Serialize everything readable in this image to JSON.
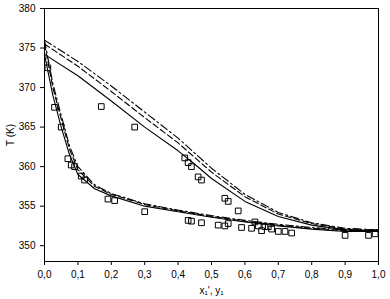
{
  "chart_data": {
    "type": "line",
    "xlabel": "x₁', y₁",
    "ylabel": "T (K)",
    "xlim": [
      0,
      1
    ],
    "ylim": [
      348,
      380
    ],
    "xticks": [
      {
        "value": 0,
        "label": "0,0"
      },
      {
        "value": 0.1,
        "label": "0,1"
      },
      {
        "value": 0.2,
        "label": "0,2"
      },
      {
        "value": 0.3,
        "label": "0,3"
      },
      {
        "value": 0.4,
        "label": "0,4"
      },
      {
        "value": 0.5,
        "label": "0,5"
      },
      {
        "value": 0.6,
        "label": "0,6"
      },
      {
        "value": 0.7,
        "label": "0,7"
      },
      {
        "value": 0.8,
        "label": "0,8"
      },
      {
        "value": 0.9,
        "label": "0,9"
      },
      {
        "value": 1,
        "label": "1,0"
      }
    ],
    "yticks": [
      350,
      355,
      360,
      365,
      370,
      375,
      380
    ],
    "grid": false,
    "series": [
      {
        "type": "scatter",
        "marker": "square",
        "color": "#000000",
        "x": [
          0.01,
          0.03,
          0.05,
          0.07,
          0.08,
          0.09,
          0.11,
          0.12,
          0.19,
          0.21,
          0.3,
          0.43,
          0.44,
          0.47,
          0.52,
          0.54,
          0.55,
          0.59,
          0.62,
          0.64,
          0.65,
          0.66,
          0.68,
          0.7,
          0.72,
          0.74,
          0.9,
          0.97,
          0.99,
          0.17,
          0.27,
          0.42,
          0.43,
          0.44,
          0.46,
          0.47,
          0.54,
          0.55,
          0.58,
          0.63,
          0.67
        ],
        "values": [
          372.5,
          367.5,
          365.0,
          361.0,
          360.2,
          360.0,
          358.8,
          358.3,
          355.9,
          355.7,
          354.3,
          353.2,
          353.1,
          352.9,
          352.6,
          352.5,
          352.8,
          352.3,
          352.2,
          352.5,
          351.9,
          352.4,
          352.1,
          351.8,
          351.8,
          351.6,
          351.3,
          351.3,
          351.5,
          367.6,
          365.0,
          361.1,
          360.5,
          360.0,
          358.7,
          358.3,
          356.0,
          355.6,
          354.4,
          353.0,
          352.4
        ]
      },
      {
        "type": "line",
        "line_style": "solid",
        "color": "#000000",
        "x": [
          0,
          0.025,
          0.05,
          0.075,
          0.1,
          0.15,
          0.2,
          0.3,
          0.4,
          0.5,
          0.6,
          0.7,
          0.8,
          0.9,
          1.0
        ],
        "values": [
          374.2,
          369.0,
          365.0,
          361.5,
          359.0,
          357.2,
          356.3,
          355.0,
          354.3,
          353.6,
          353.0,
          352.5,
          352.1,
          351.8,
          351.8
        ]
      },
      {
        "type": "line",
        "line_style": "solid",
        "color": "#000000",
        "x": [
          0,
          0.1,
          0.2,
          0.3,
          0.4,
          0.45,
          0.5,
          0.6,
          0.7,
          0.8,
          0.9,
          1.0
        ],
        "values": [
          374.2,
          371.5,
          368.3,
          365.0,
          362.0,
          360.3,
          358.5,
          355.6,
          353.7,
          352.6,
          352.0,
          351.8
        ]
      },
      {
        "type": "line",
        "line_style": "dashed",
        "color": "#000000",
        "x": [
          0,
          0.025,
          0.05,
          0.075,
          0.1,
          0.15,
          0.2,
          0.3,
          0.4,
          0.5,
          0.6,
          0.7,
          0.8,
          0.9,
          1.0
        ],
        "values": [
          375.5,
          370.0,
          366.0,
          362.2,
          359.6,
          357.5,
          356.5,
          355.2,
          354.4,
          353.7,
          353.1,
          352.6,
          352.2,
          351.9,
          351.9
        ]
      },
      {
        "type": "line",
        "line_style": "dashed",
        "color": "#000000",
        "x": [
          0,
          0.1,
          0.2,
          0.3,
          0.4,
          0.5,
          0.6,
          0.7,
          0.8,
          0.9,
          1.0
        ],
        "values": [
          375.5,
          372.7,
          369.5,
          366.2,
          363.0,
          359.3,
          356.2,
          354.0,
          352.8,
          352.1,
          351.9
        ]
      },
      {
        "type": "line",
        "line_style": "dashdot",
        "color": "#000000",
        "x": [
          0,
          0.025,
          0.05,
          0.075,
          0.1,
          0.15,
          0.2,
          0.3,
          0.4,
          0.5,
          0.6,
          0.7,
          0.8,
          0.9,
          1.0
        ],
        "values": [
          376.0,
          370.5,
          366.5,
          362.6,
          360.0,
          357.7,
          356.6,
          355.3,
          354.5,
          353.8,
          353.2,
          352.7,
          352.3,
          352.0,
          352.0
        ]
      },
      {
        "type": "line",
        "line_style": "dashdot",
        "color": "#000000",
        "x": [
          0,
          0.1,
          0.2,
          0.3,
          0.4,
          0.5,
          0.6,
          0.7,
          0.8,
          0.9,
          1.0
        ],
        "values": [
          376.0,
          373.3,
          370.2,
          366.9,
          363.6,
          359.8,
          356.5,
          354.2,
          352.9,
          352.2,
          352.0
        ]
      }
    ]
  }
}
